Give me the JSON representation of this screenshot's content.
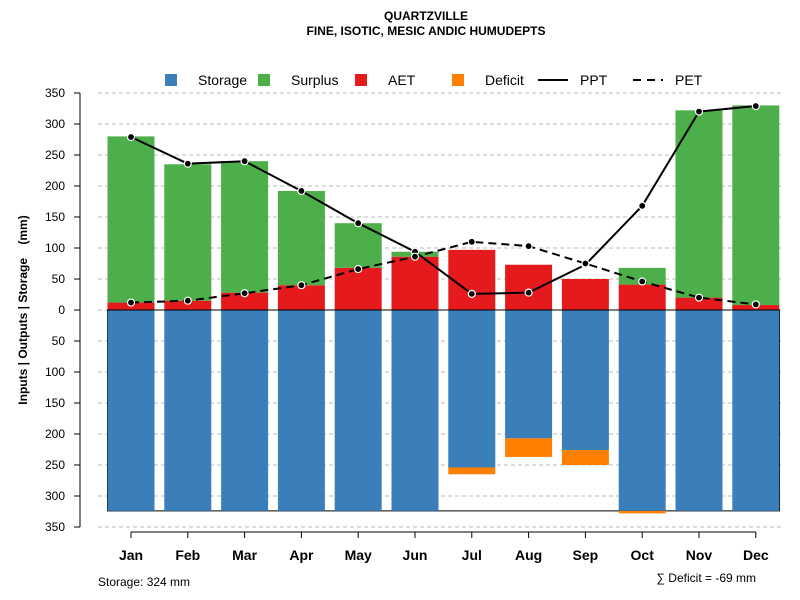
{
  "chart_data": {
    "type": "bar",
    "title": "QUARTZVILLE",
    "subtitle": "FINE, ISOTIC, MESIC ANDIC HUMUDEPTS",
    "ylabel": "Inputs | Outputs | Storage    (mm)",
    "ylim": [
      -350,
      350
    ],
    "yticks": [
      350,
      300,
      250,
      200,
      150,
      100,
      50,
      0,
      50,
      100,
      150,
      200,
      250,
      300,
      350
    ],
    "yaxis_note": "values below zero are drawn as positive depths (storage, deficit)",
    "categories": [
      "Jan",
      "Feb",
      "Mar",
      "Apr",
      "May",
      "Jun",
      "Jul",
      "Aug",
      "Sep",
      "Oct",
      "Nov",
      "Dec"
    ],
    "storage_capacity": 324,
    "series": [
      {
        "name": "Storage",
        "kind": "bar-below",
        "color": "#3a7eba",
        "values": [
          324,
          324,
          324,
          324,
          324,
          324,
          254,
          207,
          226,
          324,
          324,
          324
        ]
      },
      {
        "name": "Surplus",
        "kind": "bar-stack-top",
        "color": "#4daf4a",
        "values": [
          268,
          220,
          212,
          152,
          72,
          8,
          0,
          0,
          0,
          27,
          302,
          322
        ]
      },
      {
        "name": "AET",
        "kind": "bar-stack-base",
        "color": "#e41a1c",
        "values": [
          12,
          15,
          28,
          40,
          68,
          86,
          97,
          73,
          50,
          41,
          20,
          8
        ]
      },
      {
        "name": "Deficit",
        "kind": "bar-below-stack",
        "color": "#ff7f00",
        "values": [
          0,
          0,
          0,
          0,
          0,
          0,
          11,
          30,
          24,
          4,
          0,
          0
        ]
      },
      {
        "name": "PPT",
        "kind": "line",
        "dash": "solid",
        "color": "#000000",
        "values": [
          279,
          236,
          240,
          192,
          140,
          94,
          26,
          28,
          73,
          168,
          320,
          329
        ]
      },
      {
        "name": "PET",
        "kind": "line",
        "dash": "dashed",
        "color": "#000000",
        "values": [
          12,
          15,
          27,
          40,
          66,
          86,
          110,
          103,
          75,
          46,
          20,
          9
        ]
      }
    ],
    "legend": {
      "position": "top",
      "entries": [
        {
          "label": "Storage",
          "symbol": "square",
          "color": "#3a7eba"
        },
        {
          "label": "Surplus",
          "symbol": "square",
          "color": "#4daf4a"
        },
        {
          "label": "AET",
          "symbol": "square",
          "color": "#e41a1c"
        },
        {
          "label": "Deficit",
          "symbol": "square",
          "color": "#ff7f00"
        },
        {
          "label": "PPT",
          "symbol": "solid-line",
          "color": "#000000"
        },
        {
          "label": "PET",
          "symbol": "dashed-line",
          "color": "#000000"
        }
      ]
    },
    "grid": true,
    "footer_left": "Storage: 324 mm",
    "footer_right": "∑ Deficit = -69 mm"
  }
}
